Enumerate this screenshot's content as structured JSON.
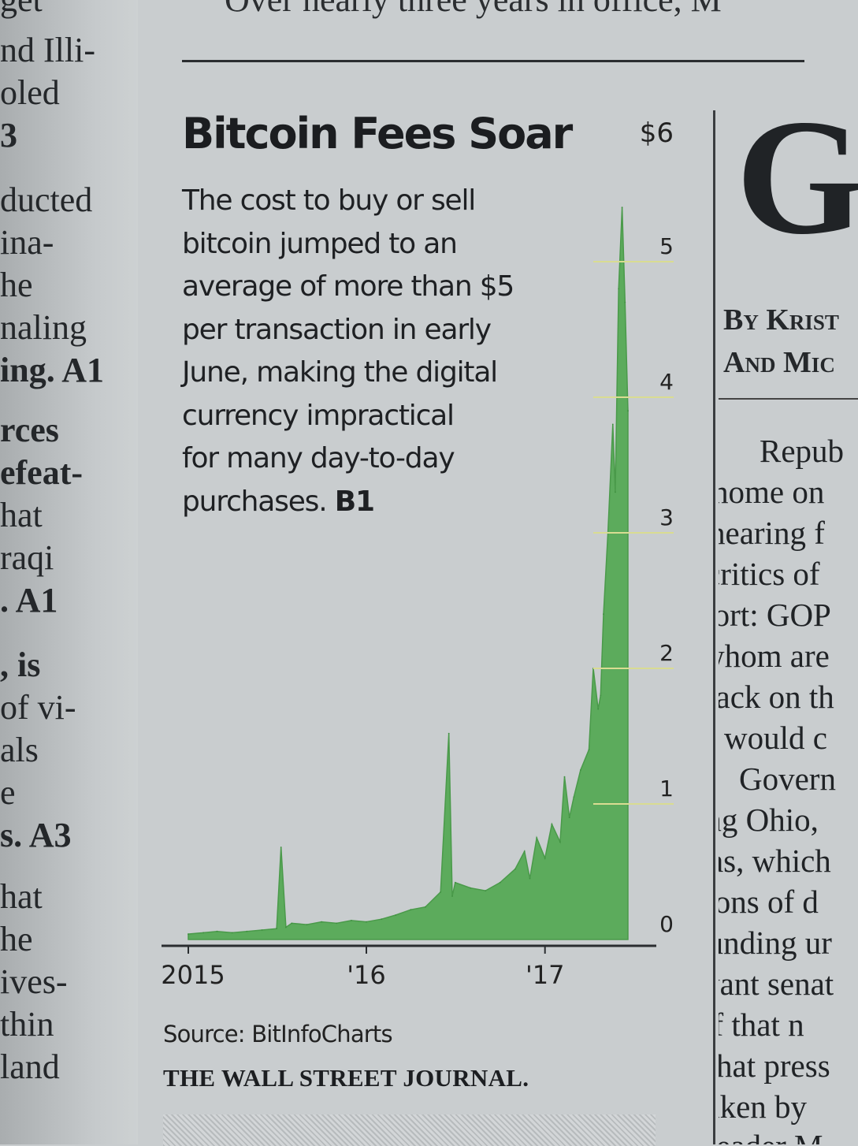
{
  "left_column": {
    "lines": [
      "get",
      "nd Illi-",
      "oled",
      "3",
      "ducted",
      "ina-",
      "he",
      "naling",
      "ing. A1",
      "rces",
      "efeat-",
      "hat",
      "raqi",
      ". A1",
      ", is",
      "of vi-",
      "als",
      "e",
      "s. A3",
      "hat",
      "he",
      "ives-",
      "thin",
      "land"
    ]
  },
  "top_fragment": "Over nearly three years in office, M",
  "chart": {
    "title": "Bitcoin Fees Soar",
    "description_lines": [
      "The cost to buy or sell",
      "bitcoin jumped to an",
      "average of more than $5",
      "per transaction in early",
      "June, making the digital",
      "currency impractical",
      "for many day-to-day"
    ],
    "description_last": "purchases.",
    "reference": "B1",
    "source": "Source: BitInfoCharts",
    "publisher": "THE WALL STREET JOURNAL."
  },
  "chart_data": {
    "type": "area",
    "title": "Bitcoin Fees Soar",
    "ylabel": "",
    "xlabel": "",
    "ylim": [
      0,
      6
    ],
    "y_ticks": [
      "0",
      "1",
      "2",
      "3",
      "4",
      "5",
      "$6"
    ],
    "y_tick_values": [
      0,
      1,
      2,
      3,
      4,
      5,
      6
    ],
    "x_ticks": [
      "2015",
      "'16",
      "'17"
    ],
    "x_tick_dates": [
      "2015-01-01",
      "2016-01-01",
      "2017-01-01"
    ],
    "xlim": [
      "2015-01-01",
      "2017-06-20"
    ],
    "grid": false,
    "series": [
      {
        "color": "#5cab5c",
        "points": [
          [
            "2015-01-01",
            0.04
          ],
          [
            "2015-02-01",
            0.05
          ],
          [
            "2015-03-01",
            0.06
          ],
          [
            "2015-04-01",
            0.05
          ],
          [
            "2015-05-01",
            0.06
          ],
          [
            "2015-06-01",
            0.07
          ],
          [
            "2015-07-01",
            0.08
          ],
          [
            "2015-07-10",
            0.68
          ],
          [
            "2015-07-20",
            0.09
          ],
          [
            "2015-08-01",
            0.12
          ],
          [
            "2015-09-01",
            0.11
          ],
          [
            "2015-10-01",
            0.13
          ],
          [
            "2015-11-01",
            0.12
          ],
          [
            "2015-12-01",
            0.14
          ],
          [
            "2016-01-01",
            0.13
          ],
          [
            "2016-02-01",
            0.15
          ],
          [
            "2016-03-01",
            0.18
          ],
          [
            "2016-04-01",
            0.22
          ],
          [
            "2016-05-01",
            0.24
          ],
          [
            "2016-06-01",
            0.35
          ],
          [
            "2016-06-18",
            1.52
          ],
          [
            "2016-06-25",
            0.32
          ],
          [
            "2016-07-01",
            0.42
          ],
          [
            "2016-08-01",
            0.38
          ],
          [
            "2016-09-01",
            0.36
          ],
          [
            "2016-10-01",
            0.42
          ],
          [
            "2016-11-01",
            0.52
          ],
          [
            "2016-11-20",
            0.65
          ],
          [
            "2016-12-01",
            0.45
          ],
          [
            "2016-12-15",
            0.75
          ],
          [
            "2017-01-01",
            0.6
          ],
          [
            "2017-01-15",
            0.85
          ],
          [
            "2017-02-01",
            0.72
          ],
          [
            "2017-02-10",
            1.2
          ],
          [
            "2017-02-20",
            0.9
          ],
          [
            "2017-03-01",
            1.05
          ],
          [
            "2017-03-15",
            1.25
          ],
          [
            "2017-04-01",
            1.4
          ],
          [
            "2017-04-10",
            2.0
          ],
          [
            "2017-04-20",
            1.7
          ],
          [
            "2017-04-25",
            1.8
          ],
          [
            "2017-05-01",
            2.4
          ],
          [
            "2017-05-10",
            3.0
          ],
          [
            "2017-05-20",
            3.8
          ],
          [
            "2017-05-25",
            3.3
          ],
          [
            "2017-06-01",
            4.8
          ],
          [
            "2017-06-08",
            5.4
          ],
          [
            "2017-06-14",
            4.7
          ],
          [
            "2017-06-20",
            3.9
          ]
        ]
      }
    ]
  },
  "right_column": {
    "headline_fragment": "G",
    "byline": [
      "By Krist",
      "And Mic"
    ],
    "lines": [
      "Repub",
      "home on",
      "hearing f",
      "critics of",
      "fort: GOP",
      "whom are",
      "back on th",
      "it would c",
      "Govern",
      "ing Ohio,",
      "sas, which",
      "lions of d",
      "funding ur",
      "want senat",
      "of that n",
      "That press",
      "taken by",
      "Leader M"
    ]
  }
}
